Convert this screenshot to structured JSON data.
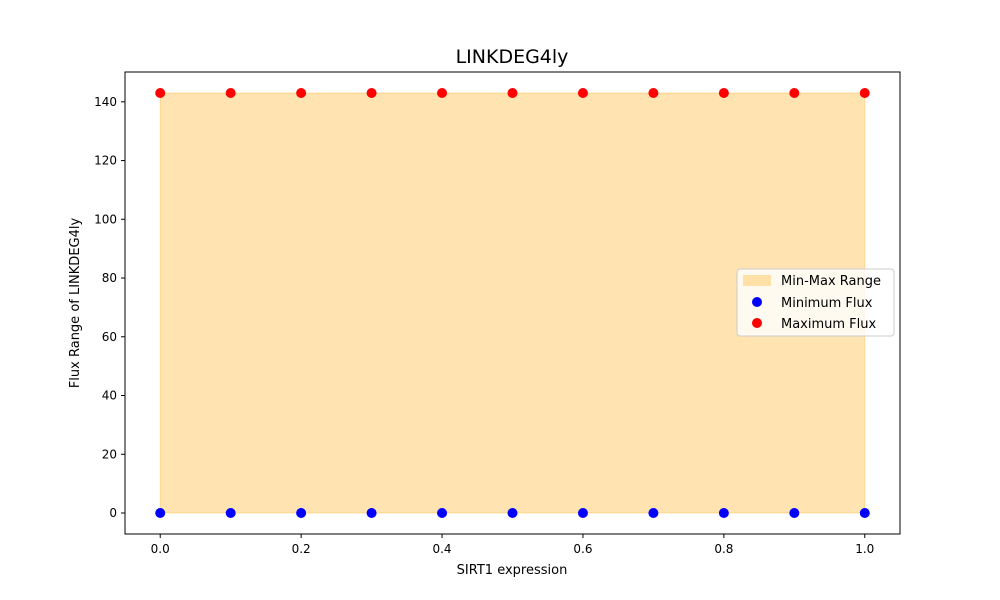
{
  "chart_data": {
    "type": "scatter",
    "title": "LINKDEG4ly",
    "xlabel": "SIRT1 expression",
    "ylabel": "Flux Range of LINKDEG4ly",
    "xlim": [
      -0.05,
      1.05
    ],
    "ylim": [
      -7.15,
      150.15
    ],
    "xticks": [
      "0.0",
      "0.2",
      "0.4",
      "0.6",
      "0.8",
      "1.0"
    ],
    "yticks": [
      "0",
      "20",
      "40",
      "60",
      "80",
      "100",
      "120",
      "140"
    ],
    "grid": false,
    "legend_position": "center-right",
    "x": [
      0.0,
      0.1,
      0.2,
      0.3,
      0.4,
      0.5,
      0.6,
      0.7,
      0.8,
      0.9,
      1.0
    ],
    "series": [
      {
        "name": "Minimum Flux",
        "color": "#0000ff",
        "values": [
          0,
          0,
          0,
          0,
          0,
          0,
          0,
          0,
          0,
          0,
          0
        ]
      },
      {
        "name": "Maximum Flux",
        "color": "#ff0000",
        "values": [
          143,
          143,
          143,
          143,
          143,
          143,
          143,
          143,
          143,
          143,
          143
        ]
      }
    ],
    "range_fill": {
      "name": "Min-Max Range",
      "color": "#ffa500"
    }
  }
}
